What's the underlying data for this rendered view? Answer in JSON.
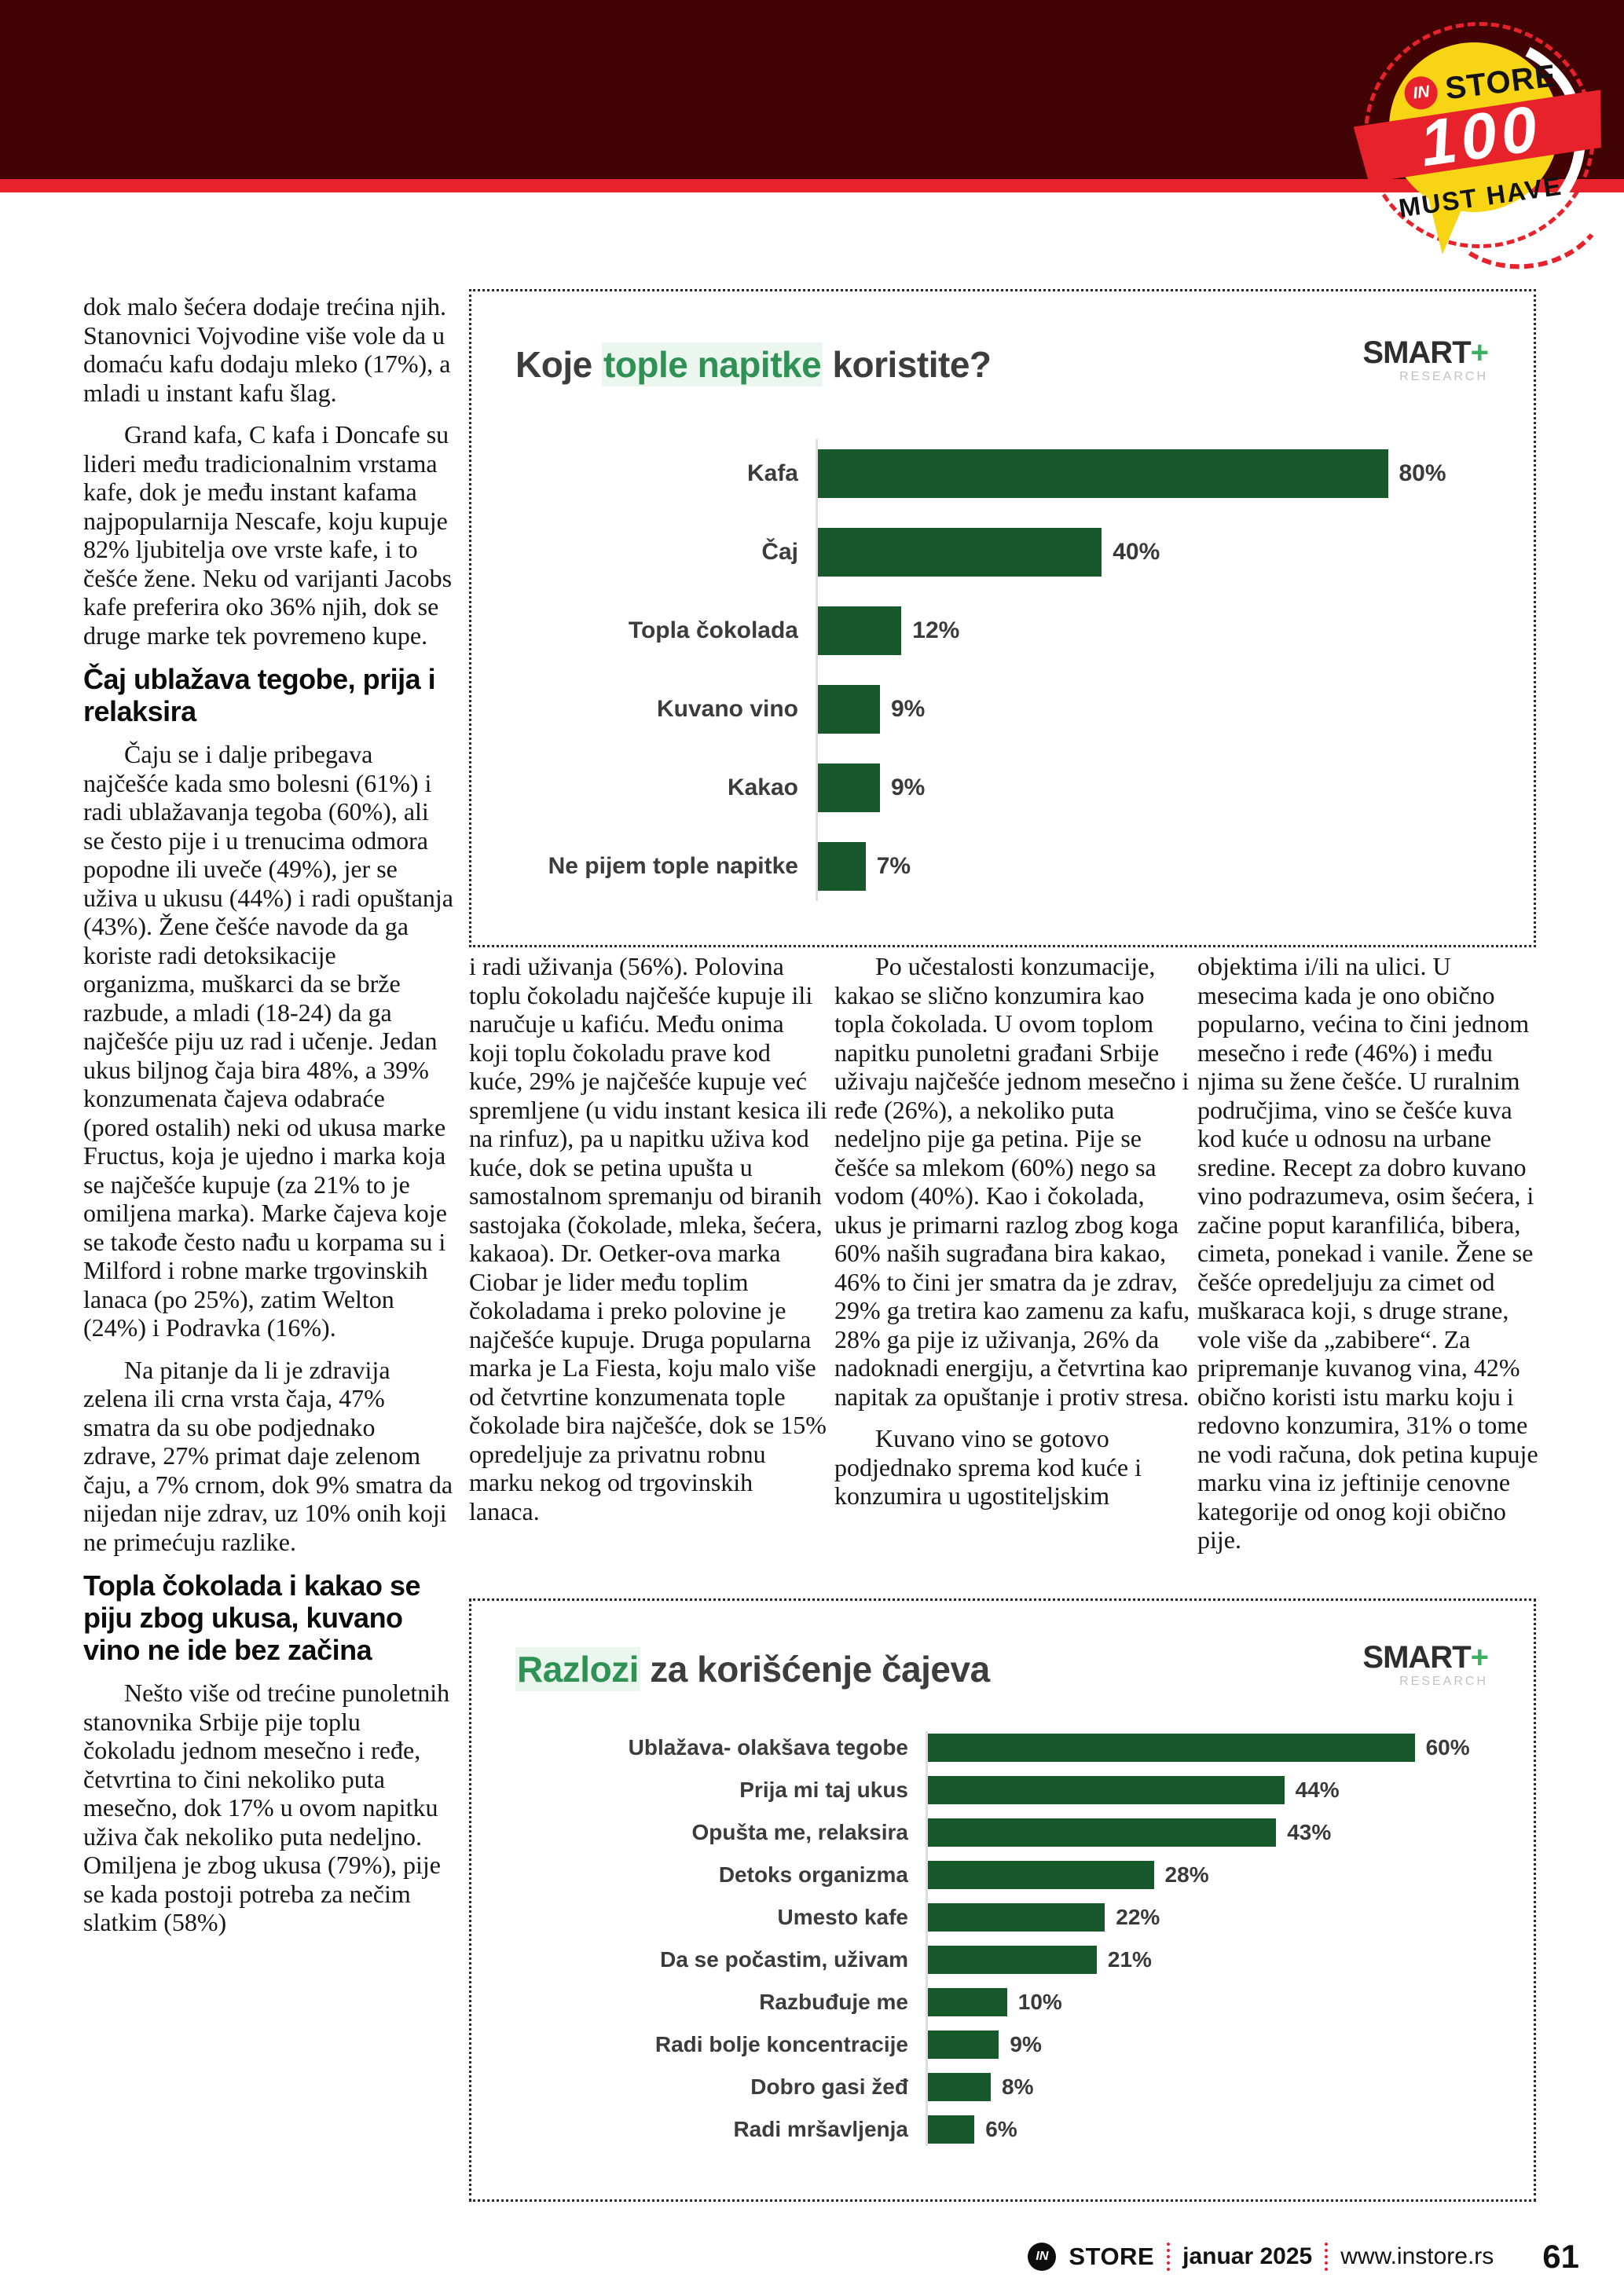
{
  "badge": {
    "in": "IN",
    "store": "STORE",
    "number": "100",
    "tagline": "MUST HAVE"
  },
  "colors": {
    "header_maroon": "#410304",
    "accent_red": "#e8222b",
    "badge_yellow": "#f7d414",
    "title_green": "#2f9254",
    "bar_green": "#17592b"
  },
  "article": {
    "col1": {
      "p1": "dok malo šećera dodaje trećina njih. Stanovnici Vojvodine više vole da u domaću kafu dodaju mleko (17%), a mladi u instant kafu šlag.",
      "p2": "Grand kafa, C kafa i Doncafe su lideri među tradicionalnim vrstama kafe, dok je među instant kafama najpopularnija Nescafe, koju kupuje 82% ljubitelja ove vrste kafe, i to češće žene. Neku od varijanti Jacobs kafe preferira oko 36% njih, dok se druge marke tek povremeno kupe.",
      "h1": "Čaj ublažava tegobe, prija i relaksira",
      "p3": "Čaju se i dalje pribegava najčešće kada smo bolesni (61%) i radi ublažavanja tegoba (60%), ali se često pije i u trenucima odmora popodne ili uveče (49%), jer se uživa u ukusu (44%) i radi opuštanja (43%). Žene češće navode da ga koriste radi detoksikacije organizma, muškarci da se brže razbude, a mladi (18-24) da ga najčešće piju uz rad i učenje. Jedan ukus biljnog čaja bira 48%, a 39% konzumenata čajeva odabraće (pored ostalih) neki od ukusa marke Fructus, koja je ujedno i marka koja se najčešće kupuje (za 21% to je omiljena marka). Marke čajeva koje se takođe često nađu u korpama su i Milford i robne marke trgovinskih lanaca (po 25%), zatim Welton (24%) i Podravka (16%).",
      "p4": "Na pitanje da li je zdravija zelena ili crna vrsta čaja, 47% smatra da su obe podjednako zdrave, 27% primat daje zelenom čaju, a 7% crnom, dok 9% smatra da nijedan nije zdrav, uz 10% onih koji ne primećuju razlike.",
      "h2": "Topla čokolada i kakao se piju zbog ukusa, kuvano vino ne ide bez začina",
      "p5": "Nešto više od trećine punoletnih stanovnika Srbije pije toplu čokoladu jednom mesečno i ređe, četvrtina to čini nekoliko puta mesečno, dok 17% u ovom napitku uživa čak nekoliko puta nedeljno. Omiljena je zbog ukusa (79%), pije se kada postoji potreba za nečim slatkim (58%)"
    },
    "col2": {
      "p1": "i radi uživanja (56%). Polovina toplu čokoladu najčešće kupuje ili naručuje u kafiću. Među onima koji toplu čokoladu prave kod kuće, 29% je najčešće kupuje već spremljene (u vidu instant kesica ili na rinfuz), pa u napitku uživa kod kuće, dok se petina upušta u samostalnom spremanju od biranih sastojaka (čokolade, mleka, šećera, kakaoa). Dr. Oetker-ova marka Ciobar je lider među toplim čokoladama i preko polovine je najčešće kupuje. Druga popularna marka je La Fiesta, koju malo više od četvrtine konzumenata tople čokolade bira najčešće, dok se 15% opredeljuje za privatnu robnu marku nekog od trgovinskih lanaca."
    },
    "col3": {
      "p1": "Po učestalosti konzumacije, kakao se slično konzumira kao topla čokolada. U ovom toplom napitku punoletni građani Srbije uživaju najčešće jednom mesečno i ređe (26%), a nekoliko puta nedeljno pije ga petina. Pije se češće sa mlekom (60%) nego sa vodom (40%). Kao i čokolada, ukus je primarni razlog zbog koga 60% naših sugrađana bira kakao, 46% to čini jer smatra da je zdrav, 29% ga tretira kao zamenu za kafu, 28% ga pije iz uživanja, 26% da nadoknadi energiju, a četvrtina kao napitak za opuštanje i protiv stresa.",
      "p2": "Kuvano vino se gotovo podjednako sprema kod kuće i konzumira u ugostiteljskim"
    },
    "col4": {
      "p1": "objektima i/ili na ulici. U mesecima kada je ono obično popularno, većina to čini jednom mesečno i ređe (46%) i među njima su žene češće. U ruralnim područjima, vino se češće kuva kod kuće u odnosu na urbane sredine. Recept za dobro kuvano vino podrazumeva, osim šećera, i začine poput karanfilića, bibera, cimeta, ponekad i vanile. Žene se češće opredeljuju za cimet od muškaraca koji, s druge strane, vole više da „zabibere“. Za pripremanje kuvanog vina, 42% obično koristi istu marku koju i redovno konzumira, 31% o tome ne vodi računa, dok petina kupuje marku vina iz jeftinije cenovne kategorije od onog koji obično pije."
    }
  },
  "smart_logo": {
    "name": "SMART",
    "plus": "+",
    "sub": "RESEARCH"
  },
  "chart_data": [
    {
      "type": "bar",
      "orientation": "horizontal",
      "title": "Koje tople napitke koristite?",
      "title_parts": {
        "pre": "Koje ",
        "highlight": "tople napitke",
        "post": " koristite?"
      },
      "categories": [
        "Kafa",
        "Čaj",
        "Topla čokolada",
        "Kuvano vino",
        "Kakao",
        "Ne pijem tople napitke"
      ],
      "values": [
        80,
        40,
        12,
        9,
        9,
        7
      ],
      "value_suffix": "%",
      "xlim": [
        0,
        94
      ],
      "bar_color": "#17592b",
      "legend": false,
      "grid": false
    },
    {
      "type": "bar",
      "orientation": "horizontal",
      "title": "Razlozi za korišćenje čajeva",
      "title_parts": {
        "pre": "",
        "highlight": "Razlozi",
        "post": " za korišćenje čajeva"
      },
      "categories": [
        "Ublažava- olakšava tegobe",
        "Prija mi taj ukus",
        "Opušta me, relaksira",
        "Detoks organizma",
        "Umesto kafe",
        "Da se počastim, uživam",
        "Razbuđuje me",
        "Radi bolje koncentracije",
        "Dobro gasi žeđ",
        "Radi mršavljenja"
      ],
      "values": [
        60,
        44,
        43,
        28,
        22,
        21,
        10,
        9,
        8,
        6
      ],
      "value_suffix": "%",
      "xlim": [
        0,
        69
      ],
      "bar_color": "#17592b",
      "legend": false,
      "grid": false
    }
  ],
  "footer": {
    "logo_in": "IN",
    "brand": "STORE",
    "date": "januar 2025",
    "url": "www.instore.rs",
    "page": "61"
  }
}
